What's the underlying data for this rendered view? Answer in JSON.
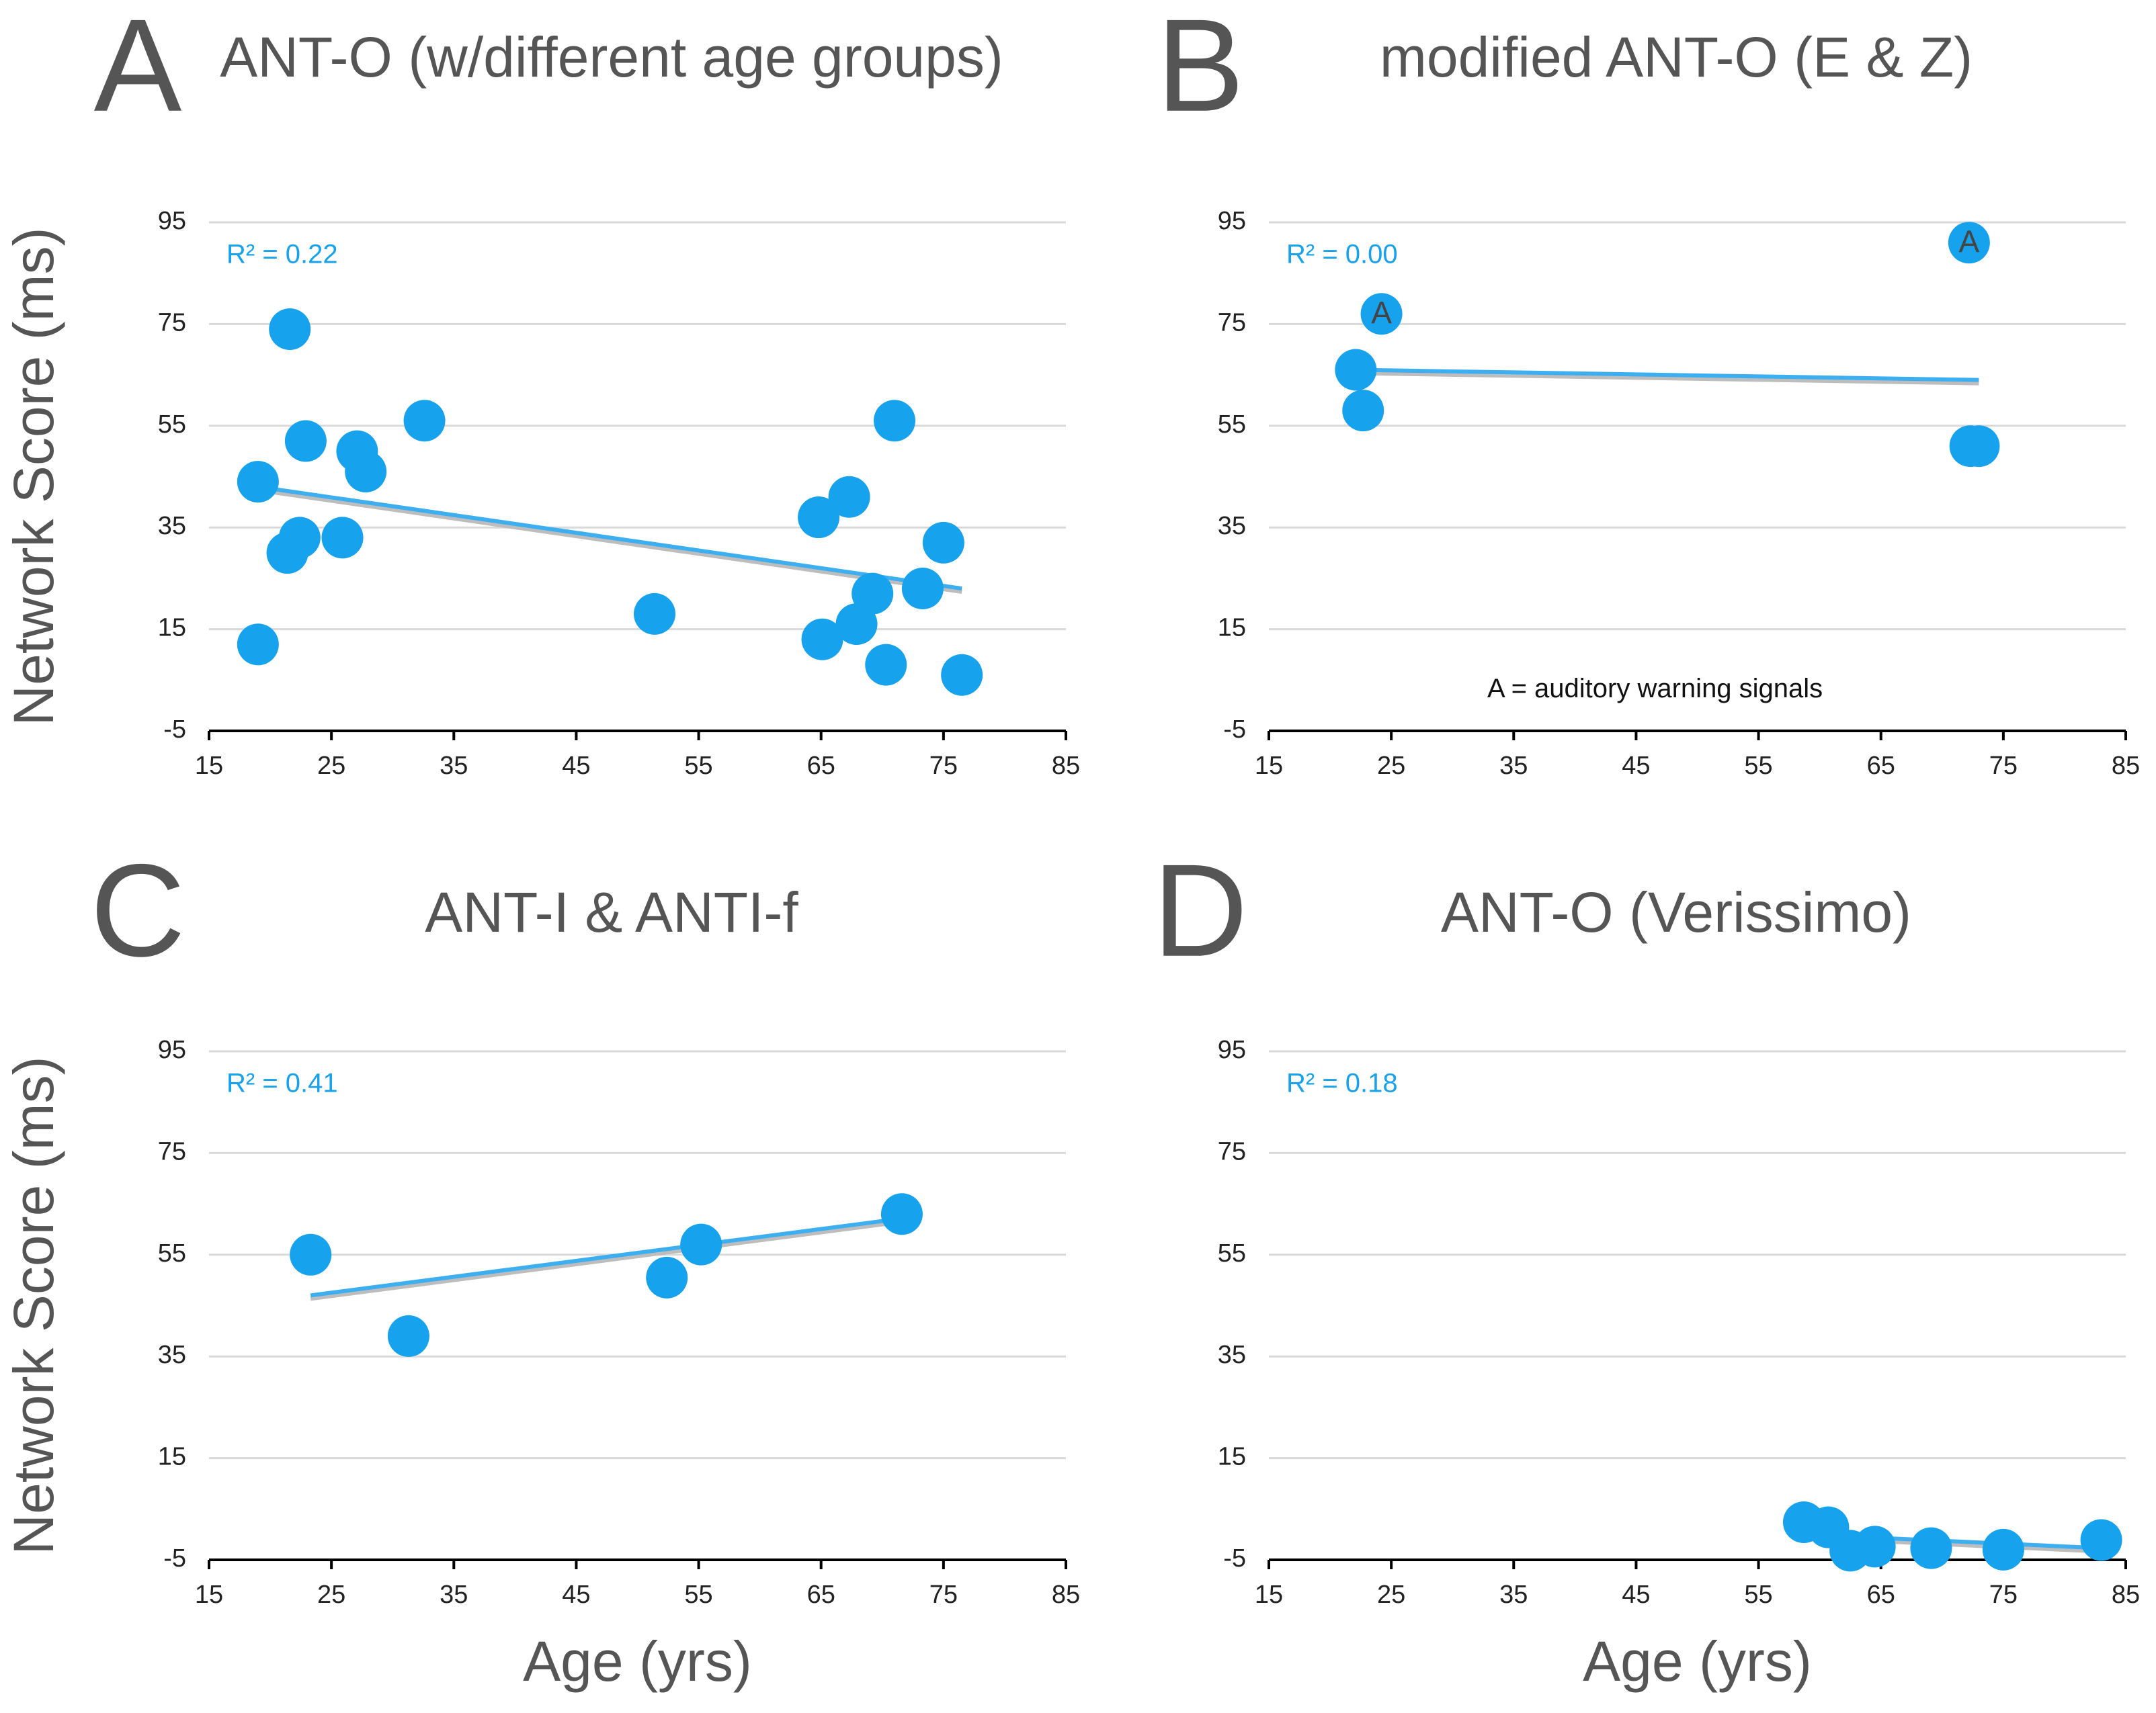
{
  "chart_data": [
    {
      "type": "scatter",
      "panel": "A",
      "title": "ANT-O (w/different age groups)",
      "y_label": "Network Score (ms)",
      "annotation": "R² = 0.22",
      "x": [
        19,
        19,
        21.6,
        22.9,
        22.4,
        21.4,
        25.9,
        27.1,
        27.8,
        32.6,
        51.4,
        64.8,
        67.3,
        71,
        65.1,
        67.9,
        69.2,
        70.3,
        73.3,
        75,
        76.5
      ],
      "y": [
        44,
        12,
        74,
        52,
        33,
        30,
        33,
        50,
        46,
        56,
        18,
        37,
        41,
        56,
        13,
        16,
        22,
        8,
        23,
        32,
        6
      ],
      "color": "#17a2ee",
      "trendline": {
        "x": [
          19,
          76.5
        ],
        "y": [
          43,
          23
        ],
        "color": "#3daff0"
      },
      "xlim": [
        15,
        85
      ],
      "xticks": [
        15,
        25,
        35,
        45,
        55,
        65,
        75,
        85
      ],
      "ylim": [
        -5,
        95
      ],
      "yticks": [
        -5,
        15,
        35,
        55,
        75,
        95
      ],
      "grid": true
    },
    {
      "type": "scatter",
      "panel": "B",
      "title": "modified ANT-O (E & Z)",
      "annotation": "R² = 0.00",
      "note": "A = auditory warning signals",
      "x": [
        24.2,
        22.1,
        22.7,
        72.2,
        72.3,
        73
      ],
      "y": [
        77,
        66,
        58,
        91,
        51,
        51
      ],
      "point_labels": [
        "A",
        null,
        null,
        "A",
        null,
        null
      ],
      "color": "#17a2ee",
      "trendline": {
        "x": [
          22.1,
          73
        ],
        "y": [
          66,
          64
        ],
        "color": "#3daff0"
      },
      "xlim": [
        15,
        85
      ],
      "xticks": [
        15,
        25,
        35,
        45,
        55,
        65,
        75,
        85
      ],
      "ylim": [
        -5,
        95
      ],
      "yticks": [
        -5,
        15,
        35,
        55,
        75,
        95
      ],
      "grid": true
    },
    {
      "type": "scatter",
      "panel": "C",
      "title": "ANT-I & ANTI-f",
      "y_label": "Network Score (ms)",
      "x_label": "Age (yrs)",
      "annotation": "R² = 0.41",
      "x": [
        23.3,
        31.3,
        52.4,
        55.2,
        71.6
      ],
      "y": [
        55,
        39,
        50.5,
        57,
        63
      ],
      "color": "#17a2ee",
      "trendline": {
        "x": [
          23.3,
          71.2
        ],
        "y": [
          47,
          62
        ],
        "color": "#3daff0"
      },
      "xlim": [
        15,
        85
      ],
      "xticks": [
        15,
        25,
        35,
        45,
        55,
        65,
        75,
        85
      ],
      "ylim": [
        -5,
        95
      ],
      "yticks": [
        -5,
        15,
        35,
        55,
        75,
        95
      ],
      "grid": true
    },
    {
      "type": "scatter",
      "panel": "D",
      "title": "ANT-O (Verissimo)",
      "x_label": "Age (yrs)",
      "annotation": "R² = 0.18",
      "x": [
        58.7,
        60.7,
        62.5,
        64.5,
        69.1,
        75,
        83
      ],
      "y": [
        2.4,
        1.4,
        -3.2,
        -2.4,
        -2.7,
        -3,
        -1.1
      ],
      "color": "#17a2ee",
      "trendline": {
        "x": [
          58.7,
          83
        ],
        "y": [
          0,
          -2.7
        ],
        "color": "#3daff0"
      },
      "xlim": [
        15,
        85
      ],
      "xticks": [
        15,
        25,
        35,
        45,
        55,
        65,
        75,
        85
      ],
      "ylim": [
        -5,
        95
      ],
      "yticks": [
        -5,
        15,
        35,
        55,
        75,
        95
      ],
      "grid": true
    }
  ]
}
